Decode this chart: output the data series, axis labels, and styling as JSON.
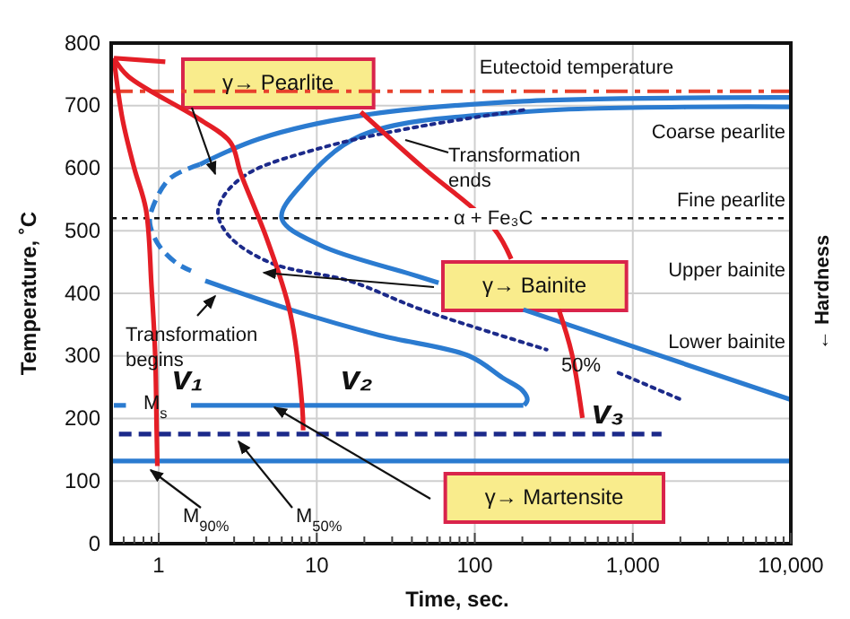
{
  "chart_data": {
    "type": "line",
    "xlabel": "Time, sec.",
    "ylabel": "Temperature, ˚C",
    "log": "x",
    "grid": true,
    "marker": "none",
    "xlim": [
      0.5,
      10000
    ],
    "ylim": [
      0,
      800
    ],
    "xticks": [
      {
        "value": 0.6,
        "label": null
      },
      {
        "value": 0.7,
        "label": null
      },
      {
        "value": 0.8,
        "label": null
      },
      {
        "value": 0.9,
        "label": null
      },
      1,
      {
        "value": 2,
        "label": null
      },
      {
        "value": 3,
        "label": null
      },
      {
        "value": 4,
        "label": null
      },
      {
        "value": 5,
        "label": null
      },
      {
        "value": 6,
        "label": null
      },
      {
        "value": 7,
        "label": null
      },
      {
        "value": 8,
        "label": null
      },
      {
        "value": 9,
        "label": null
      },
      10,
      {
        "value": 20,
        "label": null
      },
      {
        "value": 30,
        "label": null
      },
      {
        "value": 40,
        "label": null
      },
      {
        "value": 50,
        "label": null
      },
      {
        "value": 60,
        "label": null
      },
      {
        "value": 70,
        "label": null
      },
      {
        "value": 80,
        "label": null
      },
      {
        "value": 90,
        "label": null
      },
      100,
      {
        "value": 200,
        "label": null
      },
      {
        "value": 300,
        "label": null
      },
      {
        "value": 400,
        "label": null
      },
      {
        "value": 500,
        "label": null
      },
      {
        "value": 600,
        "label": null
      },
      {
        "value": 700,
        "label": null
      },
      {
        "value": 800,
        "label": null
      },
      {
        "value": 900,
        "label": null
      },
      {
        "value": 1000,
        "label": "1,000"
      },
      {
        "value": 2000,
        "label": null
      },
      {
        "value": 3000,
        "label": null
      },
      {
        "value": 4000,
        "label": null
      },
      {
        "value": 5000,
        "label": null
      },
      {
        "value": 6000,
        "label": null
      },
      {
        "value": 7000,
        "label": null
      },
      {
        "value": 8000,
        "label": null
      },
      {
        "value": 9000,
        "label": null
      },
      {
        "value": 10000,
        "label": "10,000"
      }
    ],
    "yticks": [
      0,
      100,
      200,
      300,
      400,
      500,
      600,
      700,
      800
    ],
    "series": [
      {
        "color": "#2b7bd0",
        "line_style": "solid",
        "x": [
          1.82,
          4.33,
          19,
          203,
          10000
        ],
        "values": [
          606,
          647,
          684,
          707,
          713
        ]
      },
      {
        "color": "#2b7bd0",
        "line_style": "dashed",
        "x": [
          1.82,
          1.17,
          0.9,
          0.88,
          1.0,
          1.3,
          1.6
        ],
        "values": [
          606,
          583,
          532,
          511,
          477,
          448,
          436
        ]
      },
      {
        "color": "#2b7bd0",
        "line_style": "solid",
        "x": [
          1.97,
          6.8,
          25,
          92,
          150,
          200,
          215,
          205
        ],
        "values": [
          420,
          374,
          333,
          300,
          265,
          245,
          230,
          221
        ]
      },
      {
        "color": "#2b7bd0",
        "line_style": "solid",
        "x": [
          10000,
          203,
          19,
          8.1,
          6.0,
          10.5,
          39,
          59,
          92,
          203,
          10000
        ],
        "values": [
          698,
          690,
          652,
          575,
          520,
          477,
          431,
          417,
          null,
          374,
          230
        ]
      },
      {
        "color": "#1c2a8a",
        "line_style": "dotted",
        "x": [
          203,
          39,
          10.5,
          3.7,
          2.57,
          2.37,
          2.85,
          5.2,
          16,
          46,
          285
        ],
        "values": [
          693,
          664,
          632,
          592,
          555,
          526,
          489,
          448,
          420,
          374,
          310
        ]
      },
      {
        "color": "#1c2a8a",
        "line_style": "dotted",
        "x": [
          811,
          2030
        ],
        "values": [
          273,
          230
        ]
      },
      {
        "color": "#2b7bd0",
        "line_style": "solid",
        "x": [
          1.6,
          203
        ],
        "values": [
          221,
          221
        ]
      },
      {
        "color": "#2b7bd0",
        "line_style": "solid",
        "x": [
          0.52,
          0.62
        ],
        "values": [
          221,
          221
        ]
      },
      {
        "color": "#1c2a8a",
        "line_style": "dashed",
        "x": [
          0.56,
          1520
        ],
        "values": [
          175,
          175
        ]
      },
      {
        "color": "#2b7bd0",
        "line_style": "solid",
        "x": [
          0.5,
          10000
        ],
        "values": [
          132,
          132
        ]
      },
      {
        "color": "#e41e26",
        "line_style": "solid",
        "x": [
          0.52,
          0.59,
          0.7,
          0.83,
          0.9,
          0.95,
          0.97,
          0.98
        ],
        "values": [
          776,
          678,
          600,
          534,
          411,
          300,
          181,
          124
        ]
      },
      {
        "color": "#e41e26",
        "line_style": "solid",
        "x": [
          0.52,
          0.64,
          1.82,
          2.85,
          3.3,
          4.8,
          6.8,
          8.1,
          8.2
        ],
        "values": [
          776,
          747,
          678,
          641,
          592,
          489,
          368,
          218,
          181
        ]
      },
      {
        "color": "#e41e26",
        "line_style": "solid",
        "x": [
          0.52,
          1.1,
          1.4,
          5.2,
          19,
          46,
          130,
          170,
          263,
          340,
          410,
          480
        ],
        "values": [
          776,
          770,
          null,
          null,
          690,
          603,
          506,
          455,
          null,
          374,
          305,
          201
        ]
      }
    ],
    "ref_lines": [
      {
        "axis": "y",
        "value": 723,
        "label": "Eutectoid temperature",
        "color": "#e8412c",
        "line_style": "dashed"
      },
      {
        "axis": "y",
        "value": 520,
        "color": "#111111",
        "line_style": "dotted"
      }
    ],
    "annotations": [
      "γ→ Pearlite",
      "γ→ Bainite",
      "γ→ Martensite",
      "Transformation\nends",
      "Transformation\nbegins",
      "Coarse pearlite",
      "Fine pearlite",
      "Upper bainite",
      "Lower bainite",
      "α + Fe₃C",
      "v₁",
      "v₂",
      "v₃",
      "50%",
      "M$_{s}$",
      "M$_{90%}$",
      "M$_{50%}$",
      "← Hardness"
    ]
  }
}
